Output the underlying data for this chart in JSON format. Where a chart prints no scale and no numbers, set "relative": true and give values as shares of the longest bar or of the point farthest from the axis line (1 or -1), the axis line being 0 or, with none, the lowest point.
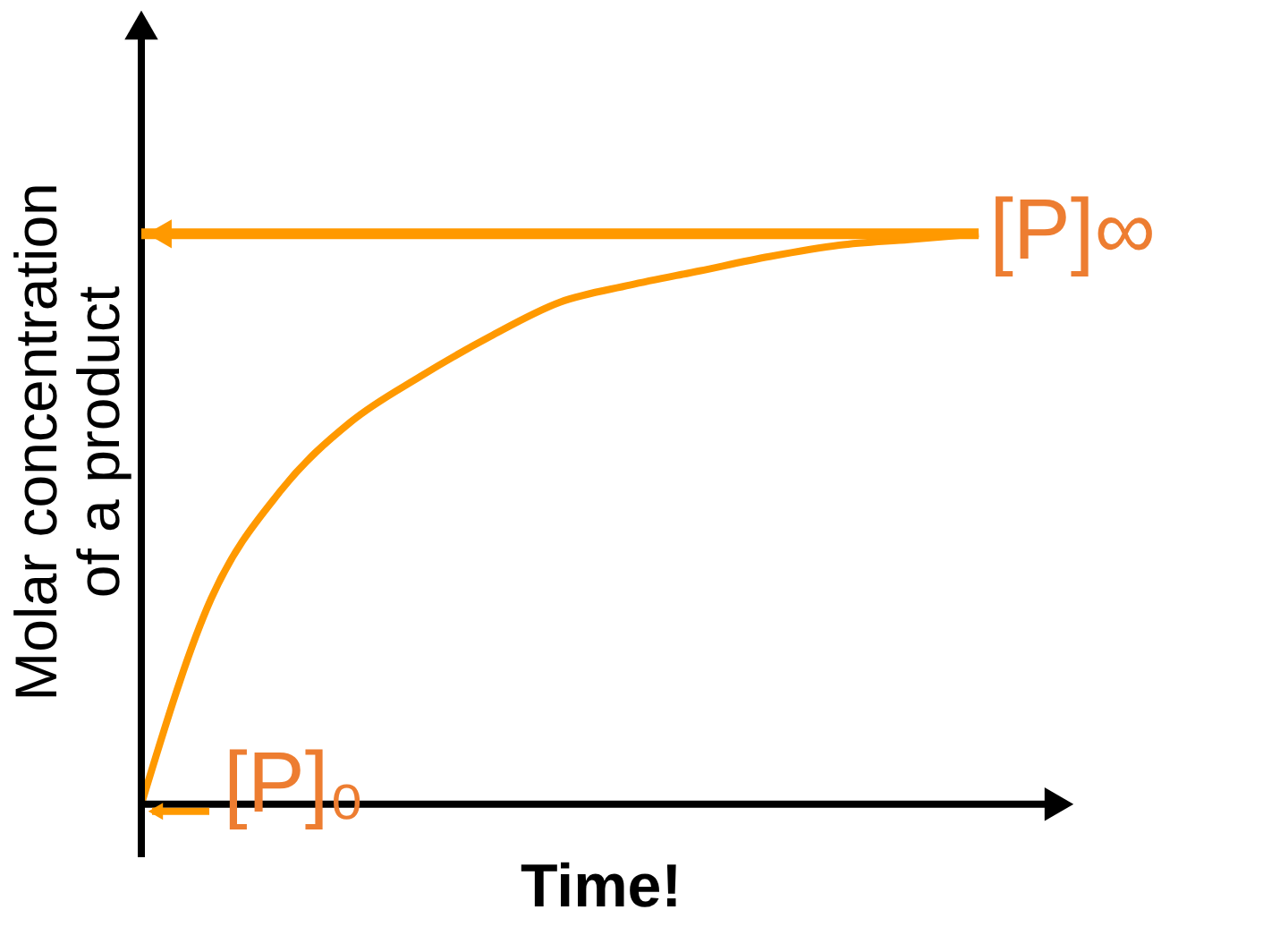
{
  "chart_data": {
    "type": "line",
    "relative": true,
    "xlabel": "Time!",
    "ylabel": "Molar concentration of a product",
    "categories": [
      null,
      null,
      null,
      null,
      null,
      null,
      null,
      null,
      null,
      null,
      null,
      null,
      null
    ],
    "values": [
      0,
      0.36,
      0.55,
      0.67,
      0.75,
      0.82,
      0.88,
      0.91,
      0.935,
      0.96,
      0.98,
      0.99,
      1.0
    ],
    "color": "#ff9900",
    "line_style": "solid",
    "marker": "none",
    "grid": false,
    "ref_lines": [
      {
        "axis": "y",
        "value": 1,
        "label": "[P]∞",
        "color": "#ff9900"
      }
    ],
    "annotations": [
      "[P]₀"
    ]
  }
}
